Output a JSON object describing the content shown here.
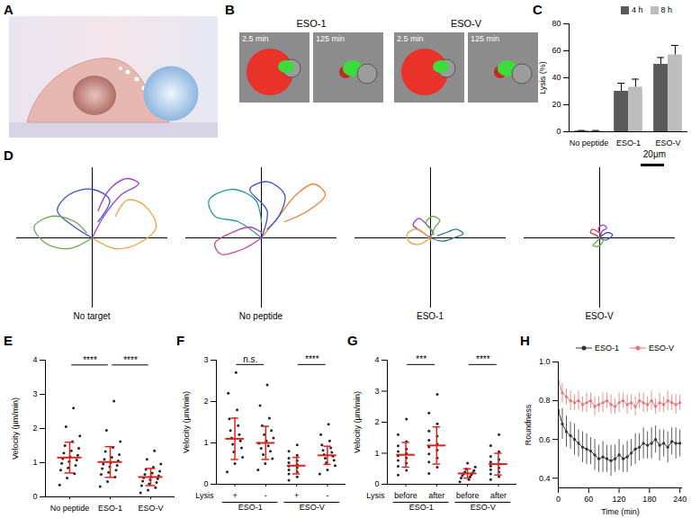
{
  "panels": [
    {
      "label": "A"
    },
    {
      "label": "B",
      "groups": [
        {
          "title": "ESO-1",
          "frames": [
            "2.5 min",
            "125 min"
          ]
        },
        {
          "title": "ESO-V",
          "frames": [
            "2.5 min",
            "125 min"
          ]
        }
      ]
    }
  ],
  "chart_data": [
    {
      "type": "bar",
      "title": "C",
      "categories": [
        "No peptide",
        "ESO-1",
        "ESO-V"
      ],
      "series": [
        {
          "name": "4 h",
          "color": "#5a5a5a",
          "values": [
            0.5,
            30,
            50
          ],
          "error": [
            0.4,
            6,
            5
          ]
        },
        {
          "name": "8 h",
          "color": "#bdbdbd",
          "values": [
            0.5,
            33,
            57
          ],
          "error": [
            0.4,
            6,
            7
          ]
        }
      ],
      "ylim": [
        0,
        80
      ],
      "yticks": [
        0,
        20,
        40,
        60,
        80
      ],
      "ylabel": "Lysis (%)",
      "legend": "top"
    },
    {
      "type": "tracks",
      "title": "D",
      "xlim": [
        -65,
        65
      ],
      "ylim": [
        -65,
        65
      ],
      "tick_labels": false,
      "scale_bar": {
        "value": 20,
        "label": "20μm"
      },
      "subplots": [
        {
          "label": "No target",
          "tracks": [
            {
              "color": "#3a4fd6",
              "x": [
                0,
                -15,
                -30,
                -20,
                0,
                15,
                5
              ],
              "y": [
                0,
                10,
                25,
                40,
                45,
                35,
                15
              ]
            },
            {
              "color": "#f0a040",
              "x": [
                0,
                20,
                40,
                55,
                45,
                30,
                20
              ],
              "y": [
                0,
                -10,
                -5,
                10,
                30,
                35,
                20
              ]
            },
            {
              "color": "#6aa84f",
              "x": [
                0,
                -20,
                -40,
                -50,
                -35,
                -15,
                -5
              ],
              "y": [
                0,
                -10,
                -5,
                10,
                20,
                15,
                5
              ]
            },
            {
              "color": "#9b3fc4",
              "x": [
                0,
                10,
                25,
                40,
                30,
                15,
                5
              ],
              "y": [
                0,
                20,
                40,
                50,
                55,
                45,
                25
              ]
            }
          ]
        },
        {
          "label": "No peptide",
          "tracks": [
            {
              "color": "#2a9aa8",
              "x": [
                0,
                -20,
                -40,
                -45,
                -25,
                -5,
                0
              ],
              "y": [
                0,
                15,
                20,
                35,
                45,
                35,
                15
              ]
            },
            {
              "color": "#e8823a",
              "x": [
                0,
                15,
                30,
                45,
                55,
                40,
                20
              ],
              "y": [
                0,
                20,
                40,
                50,
                40,
                25,
                15
              ]
            },
            {
              "color": "#c03fa8",
              "x": [
                0,
                -15,
                -35,
                -40,
                -25,
                -10,
                0
              ],
              "y": [
                0,
                -10,
                -15,
                -5,
                5,
                10,
                5
              ]
            },
            {
              "color": "#3a4fd6",
              "x": [
                0,
                5,
                -10,
                5,
                20,
                15,
                5
              ],
              "y": [
                0,
                25,
                45,
                52,
                40,
                20,
                8
              ]
            }
          ]
        },
        {
          "label": "ESO-1",
          "tracks": [
            {
              "color": "#9b3fc4",
              "x": [
                0,
                -8,
                -15,
                -10,
                -3,
                2,
                -2
              ],
              "y": [
                0,
                6,
                12,
                18,
                12,
                5,
                0
              ]
            },
            {
              "color": "#2a7a8a",
              "x": [
                0,
                10,
                20,
                28,
                22,
                14,
                6
              ],
              "y": [
                0,
                -3,
                0,
                4,
                8,
                5,
                2
              ]
            },
            {
              "color": "#f0a040",
              "x": [
                0,
                -10,
                -18,
                -20,
                -12,
                -5,
                0
              ],
              "y": [
                0,
                -6,
                -4,
                4,
                8,
                4,
                -2
              ]
            },
            {
              "color": "#6aa84f",
              "x": [
                0,
                4,
                8,
                2,
                -4,
                0,
                3
              ],
              "y": [
                0,
                10,
                16,
                20,
                14,
                8,
                3
              ]
            }
          ]
        },
        {
          "label": "ESO-V",
          "tracks": [
            {
              "color": "#d63a3a",
              "x": [
                0,
                -4,
                -8,
                -6,
                -2,
                1,
                0
              ],
              "y": [
                0,
                3,
                5,
                8,
                6,
                3,
                0
              ]
            },
            {
              "color": "#3a4fd6",
              "x": [
                0,
                5,
                9,
                11,
                7,
                3,
                1
              ],
              "y": [
                0,
                -2,
                0,
                3,
                5,
                3,
                1
              ]
            },
            {
              "color": "#6aa84f",
              "x": [
                0,
                -3,
                -6,
                -2,
                2,
                3,
                0
              ],
              "y": [
                0,
                -4,
                -7,
                -8,
                -5,
                -2,
                -1
              ]
            },
            {
              "color": "#9b3fc4",
              "x": [
                0,
                2,
                6,
                3,
                -1,
                0,
                1
              ],
              "y": [
                0,
                6,
                9,
                12,
                9,
                5,
                2
              ]
            }
          ]
        }
      ]
    },
    {
      "type": "dot_plot",
      "title": "E",
      "categories": [
        "No peptide",
        "ESO-1",
        "ESO-V"
      ],
      "values": [
        [
          0.35,
          0.55,
          0.68,
          0.78,
          0.85,
          0.92,
          0.98,
          1.03,
          1.08,
          1.12,
          1.17,
          1.22,
          1.28,
          1.35,
          1.42,
          1.5,
          1.62,
          1.78,
          2.05,
          2.6
        ],
        [
          0.3,
          0.45,
          0.58,
          0.66,
          0.72,
          0.78,
          0.83,
          0.88,
          0.92,
          0.96,
          1.0,
          1.05,
          1.1,
          1.16,
          1.24,
          1.33,
          1.45,
          1.62,
          1.95,
          2.8
        ],
        [
          0.12,
          0.2,
          0.27,
          0.33,
          0.38,
          0.42,
          0.46,
          0.5,
          0.53,
          0.56,
          0.59,
          0.62,
          0.66,
          0.7,
          0.75,
          0.8,
          0.87,
          0.96,
          1.1,
          1.35
        ]
      ],
      "mean": [
        1.15,
        1.02,
        0.58
      ],
      "sd": [
        0.45,
        0.45,
        0.25
      ],
      "color": "#e0201b",
      "ylim": [
        0,
        4
      ],
      "yticks": [
        0,
        1,
        2,
        3,
        4
      ],
      "ylabel": "Velocity (μm/min)",
      "annotations": [
        {
          "text": "****",
          "between": [
            0,
            1
          ]
        },
        {
          "text": "****",
          "between": [
            1,
            2
          ]
        }
      ]
    },
    {
      "type": "dot_plot",
      "title": "F",
      "categories": [
        "+",
        "-",
        "+",
        "-"
      ],
      "groups": [
        "ESO-1",
        "ESO-V"
      ],
      "row_label": "Lysis",
      "values": [
        [
          0.3,
          0.5,
          0.65,
          0.78,
          0.88,
          0.97,
          1.05,
          1.12,
          1.2,
          1.3,
          1.42,
          1.58,
          1.8,
          2.2,
          2.7
        ],
        [
          0.35,
          0.5,
          0.62,
          0.72,
          0.8,
          0.87,
          0.93,
          0.99,
          1.05,
          1.12,
          1.2,
          1.3,
          1.42,
          1.6,
          1.9,
          2.4
        ],
        [
          0.1,
          0.18,
          0.25,
          0.3,
          0.35,
          0.4,
          0.44,
          0.48,
          0.52,
          0.57,
          0.63,
          0.7,
          0.8,
          0.95
        ],
        [
          0.25,
          0.35,
          0.45,
          0.52,
          0.58,
          0.63,
          0.68,
          0.72,
          0.77,
          0.82,
          0.88,
          0.95,
          1.05,
          1.2,
          1.45
        ]
      ],
      "mean": [
        1.1,
        1.0,
        0.45,
        0.7
      ],
      "sd": [
        0.5,
        0.4,
        0.2,
        0.22
      ],
      "color": "#e0201b",
      "ylim": [
        0,
        3
      ],
      "yticks": [
        0,
        1,
        2,
        3
      ],
      "ylabel": "Velocity (μm/min)",
      "annotations": [
        {
          "text": "n.s.",
          "between": [
            0,
            1
          ]
        },
        {
          "text": "****",
          "between": [
            2,
            3
          ]
        }
      ]
    },
    {
      "type": "dot_plot",
      "title": "G",
      "categories": [
        "before",
        "after",
        "before",
        "after"
      ],
      "groups": [
        "ESO-1",
        "ESO-V"
      ],
      "row_label": "Lysis",
      "values": [
        [
          0.3,
          0.45,
          0.58,
          0.68,
          0.77,
          0.85,
          0.92,
          0.99,
          1.06,
          1.14,
          1.24,
          1.38,
          1.6,
          2.1
        ],
        [
          0.35,
          0.55,
          0.72,
          0.85,
          0.98,
          1.1,
          1.2,
          1.3,
          1.42,
          1.55,
          1.72,
          1.95,
          2.3,
          2.9
        ],
        [
          0.08,
          0.15,
          0.2,
          0.25,
          0.28,
          0.31,
          0.34,
          0.37,
          0.4,
          0.44,
          0.49,
          0.56,
          0.68
        ],
        [
          0.15,
          0.25,
          0.33,
          0.4,
          0.47,
          0.53,
          0.59,
          0.65,
          0.72,
          0.8,
          0.9,
          1.05,
          1.25,
          1.6
        ]
      ],
      "mean": [
        0.95,
        1.25,
        0.35,
        0.65
      ],
      "sd": [
        0.4,
        0.6,
        0.15,
        0.35
      ],
      "color": "#e0201b",
      "ylim": [
        0,
        4
      ],
      "yticks": [
        0,
        1,
        2,
        3,
        4
      ],
      "ylabel": "Velocity (μm/min)",
      "annotations": [
        {
          "text": "***",
          "between": [
            0,
            1
          ]
        },
        {
          "text": "****",
          "between": [
            2,
            3
          ]
        }
      ]
    },
    {
      "type": "line",
      "title": "H",
      "x": [
        0,
        8,
        16,
        24,
        32,
        40,
        48,
        56,
        64,
        72,
        80,
        88,
        96,
        104,
        112,
        120,
        128,
        136,
        144,
        152,
        160,
        168,
        176,
        184,
        192,
        200,
        208,
        216,
        224,
        232,
        240
      ],
      "series": [
        {
          "name": "ESO-1",
          "color": "#333333",
          "marker": "circle",
          "values": [
            0.75,
            0.68,
            0.64,
            0.62,
            0.6,
            0.58,
            0.56,
            0.55,
            0.54,
            0.52,
            0.5,
            0.51,
            0.5,
            0.49,
            0.5,
            0.52,
            0.5,
            0.51,
            0.53,
            0.55,
            0.56,
            0.58,
            0.57,
            0.58,
            0.6,
            0.57,
            0.58,
            0.56,
            0.59,
            0.58,
            0.58
          ],
          "error": [
            0.07,
            0.08,
            0.08,
            0.07,
            0.08,
            0.07,
            0.08,
            0.08,
            0.07,
            0.08,
            0.07,
            0.08,
            0.07,
            0.08,
            0.07,
            0.08,
            0.07,
            0.08,
            0.07,
            0.08,
            0.07,
            0.08,
            0.07,
            0.08,
            0.07,
            0.08,
            0.07,
            0.08,
            0.07,
            0.08,
            0.07
          ]
        },
        {
          "name": "ESO-V",
          "color": "#e8736f",
          "marker": "circle",
          "values": [
            0.9,
            0.84,
            0.82,
            0.8,
            0.79,
            0.8,
            0.78,
            0.79,
            0.8,
            0.77,
            0.78,
            0.79,
            0.8,
            0.78,
            0.77,
            0.79,
            0.8,
            0.78,
            0.79,
            0.77,
            0.8,
            0.79,
            0.78,
            0.8,
            0.77,
            0.79,
            0.78,
            0.8,
            0.79,
            0.78,
            0.79
          ],
          "error": [
            0.04,
            0.05,
            0.04,
            0.05,
            0.04,
            0.05,
            0.04,
            0.05,
            0.04,
            0.05,
            0.04,
            0.05,
            0.04,
            0.05,
            0.04,
            0.05,
            0.04,
            0.05,
            0.04,
            0.05,
            0.04,
            0.05,
            0.04,
            0.05,
            0.04,
            0.05,
            0.04,
            0.05,
            0.04,
            0.05,
            0.04
          ]
        }
      ],
      "xlim": [
        0,
        245
      ],
      "xticks": [
        0,
        60,
        120,
        180,
        240
      ],
      "xlabel": "Time (min)",
      "ylim": [
        0.35,
        1.0
      ],
      "yticks": [
        0.4,
        0.6,
        0.8,
        {
          "value": 1,
          "label": "1.0"
        }
      ],
      "ylabel": "Roundness",
      "legend": "top"
    }
  ]
}
